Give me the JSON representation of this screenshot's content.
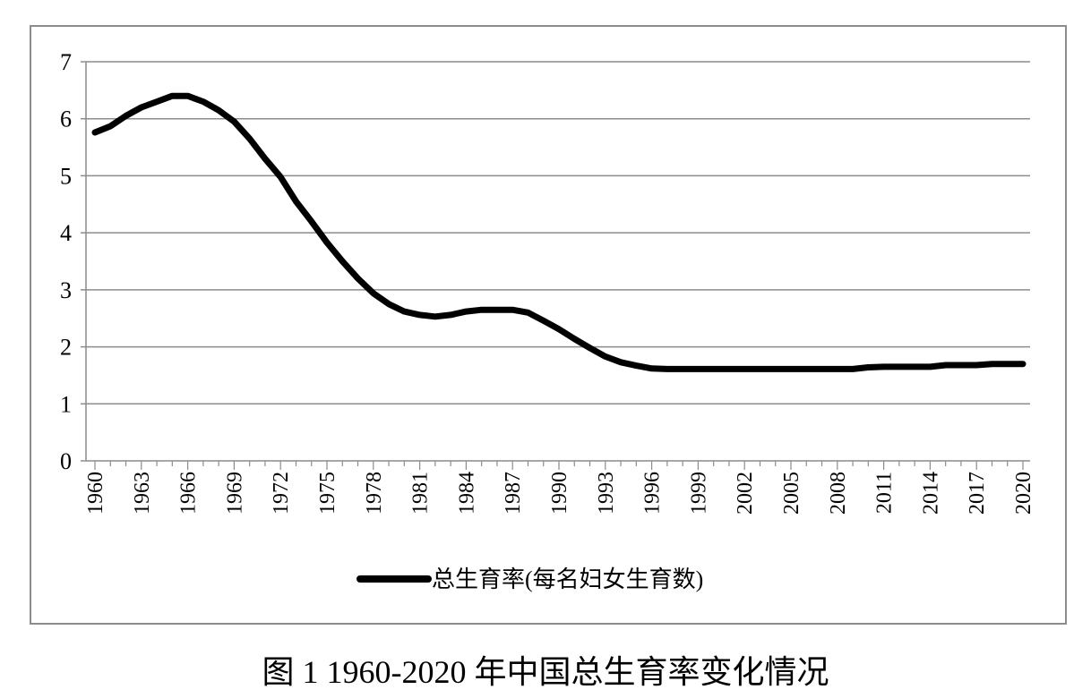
{
  "caption": "图 1 1960-2020 年中国总生育率变化情况",
  "chart_data": {
    "type": "line",
    "title": "",
    "xlabel": "",
    "ylabel": "",
    "ylim": [
      0,
      7
    ],
    "yticks": [
      0,
      1,
      2,
      3,
      4,
      5,
      6,
      7
    ],
    "x_tick_labels": [
      "1960",
      "1963",
      "1966",
      "1969",
      "1972",
      "1975",
      "1978",
      "1981",
      "1984",
      "1987",
      "1990",
      "1993",
      "1996",
      "1999",
      "2002",
      "2005",
      "2008",
      "2011",
      "2014",
      "2017",
      "2020"
    ],
    "grid": "horizontal",
    "legend_position": "bottom",
    "line_color": "#000000",
    "series": [
      {
        "name": "总生育率(每名妇女生育数)",
        "x": [
          1960,
          1961,
          1962,
          1963,
          1964,
          1965,
          1966,
          1967,
          1968,
          1969,
          1970,
          1971,
          1972,
          1973,
          1974,
          1975,
          1976,
          1977,
          1978,
          1979,
          1980,
          1981,
          1982,
          1983,
          1984,
          1985,
          1986,
          1987,
          1988,
          1989,
          1990,
          1991,
          1992,
          1993,
          1994,
          1995,
          1996,
          1997,
          1998,
          1999,
          2000,
          2001,
          2002,
          2003,
          2004,
          2005,
          2006,
          2007,
          2008,
          2009,
          2010,
          2011,
          2012,
          2013,
          2014,
          2015,
          2016,
          2017,
          2018,
          2019,
          2020
        ],
        "values": [
          5.76,
          5.87,
          6.05,
          6.2,
          6.3,
          6.4,
          6.4,
          6.3,
          6.15,
          5.95,
          5.65,
          5.3,
          4.98,
          4.55,
          4.2,
          3.83,
          3.5,
          3.2,
          2.94,
          2.75,
          2.62,
          2.56,
          2.53,
          2.56,
          2.62,
          2.65,
          2.65,
          2.65,
          2.6,
          2.46,
          2.31,
          2.14,
          1.98,
          1.83,
          1.73,
          1.67,
          1.62,
          1.61,
          1.61,
          1.61,
          1.61,
          1.61,
          1.61,
          1.61,
          1.61,
          1.61,
          1.61,
          1.61,
          1.61,
          1.61,
          1.64,
          1.65,
          1.65,
          1.65,
          1.65,
          1.68,
          1.68,
          1.68,
          1.7,
          1.7,
          1.7
        ]
      }
    ]
  }
}
